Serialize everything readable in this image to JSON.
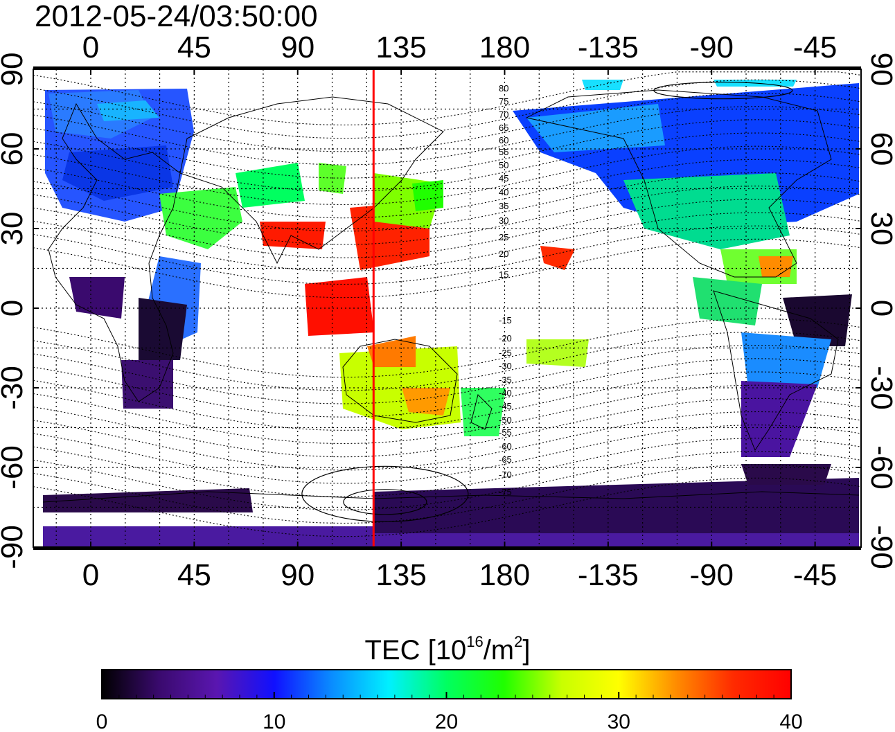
{
  "title": "2012-05-24/03:50:00",
  "lon_ticks": [
    "0",
    "45",
    "90",
    "135",
    "180",
    "-135",
    "-90",
    "-45"
  ],
  "lat_ticks": [
    "90",
    "60",
    "30",
    "0",
    "-30",
    "-60",
    "-90"
  ],
  "contour_labels_north": [
    "80",
    "75",
    "70",
    "65",
    "60",
    "55",
    "50",
    "45",
    "40",
    "35",
    "30",
    "25",
    "20",
    "15"
  ],
  "contour_labels_south": [
    "-15",
    "-20",
    "-25",
    "-30",
    "-35",
    "-40",
    "-45",
    "-50",
    "-55",
    "-60",
    "-65",
    "-70",
    "-75"
  ],
  "colorbar": {
    "title_prefix": "TEC  [10",
    "title_exp1": "16",
    "title_mid": "/m",
    "title_exp2": "2",
    "title_suffix": "]",
    "ticks": [
      "0",
      "10",
      "20",
      "30",
      "40"
    ],
    "range": [
      0,
      40
    ],
    "colors": [
      "#000000",
      "#3a0a6e",
      "#5a16b0",
      "#1010ff",
      "#0a8cff",
      "#00f0ff",
      "#00ff60",
      "#20ff00",
      "#c8ff00",
      "#ffff00",
      "#ff8c00",
      "#ff2a00",
      "#ff0000"
    ]
  },
  "map": {
    "lon_range": [
      -25,
      335
    ],
    "lat_range": [
      -90,
      90
    ],
    "meridian_marker_lon": 123,
    "marker_color": "#ff0000"
  }
}
